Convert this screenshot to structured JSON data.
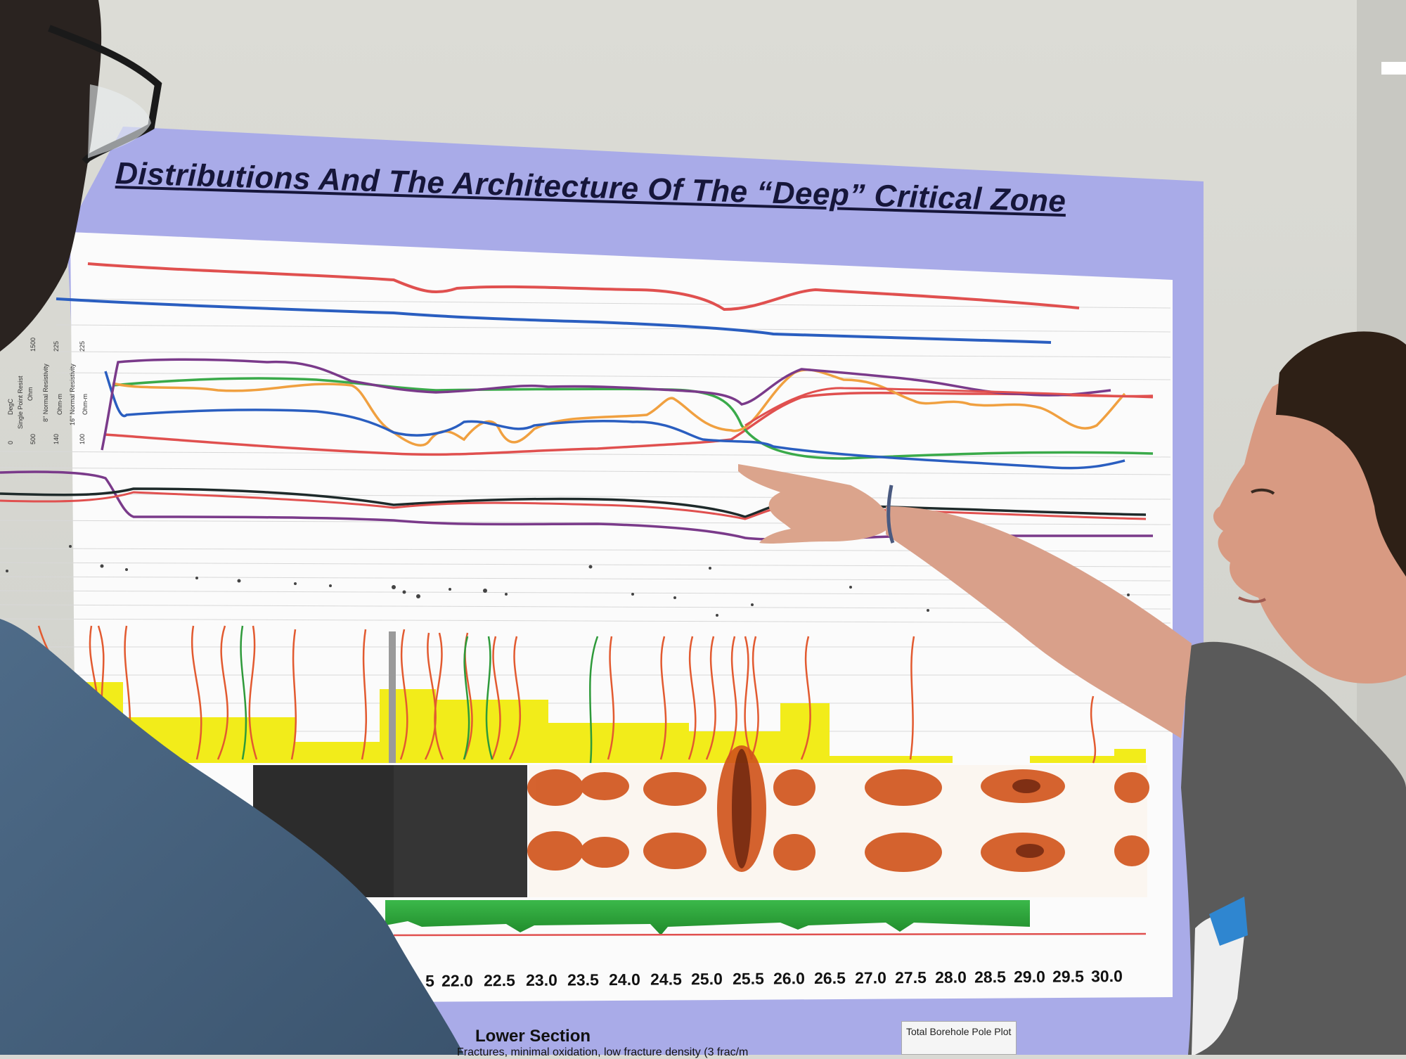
{
  "poster": {
    "title": "Distributions And The Architecture Of The “Deep” Critical Zone",
    "track_labels": [
      "DegC",
      "Single Point Resist",
      "Ohm",
      "8\" Normal Resistivity",
      "Ohm-m",
      "16\" Normal Resistivity",
      "Ohm-m"
    ],
    "track_values": [
      "0",
      "500",
      "1500",
      "140",
      "225",
      "100",
      "225"
    ],
    "depth_axis": [
      "5",
      "22.0",
      "22.5",
      "23.0",
      "23.5",
      "24.0",
      "24.5",
      "25.0",
      "25.5",
      "26.0",
      "26.5",
      "27.0",
      "27.5",
      "28.0",
      "28.5",
      "29.0",
      "29.5",
      "30.0"
    ],
    "footer_title": "Lower Section",
    "footer_desc": "Fractures, minimal oxidation, low fracture density (3 frac/m",
    "pole_plot_label": "Total Borehole Pole Plot"
  },
  "colors": {
    "poster_border": "#a9abe8",
    "red_curve": "#e0504f",
    "blue_curve": "#2a5ec0",
    "green_curve": "#3aaa4a",
    "orange_curve": "#f0a040",
    "purple_curve": "#7a3a8a",
    "yellow_fill": "#f2ec1a"
  }
}
